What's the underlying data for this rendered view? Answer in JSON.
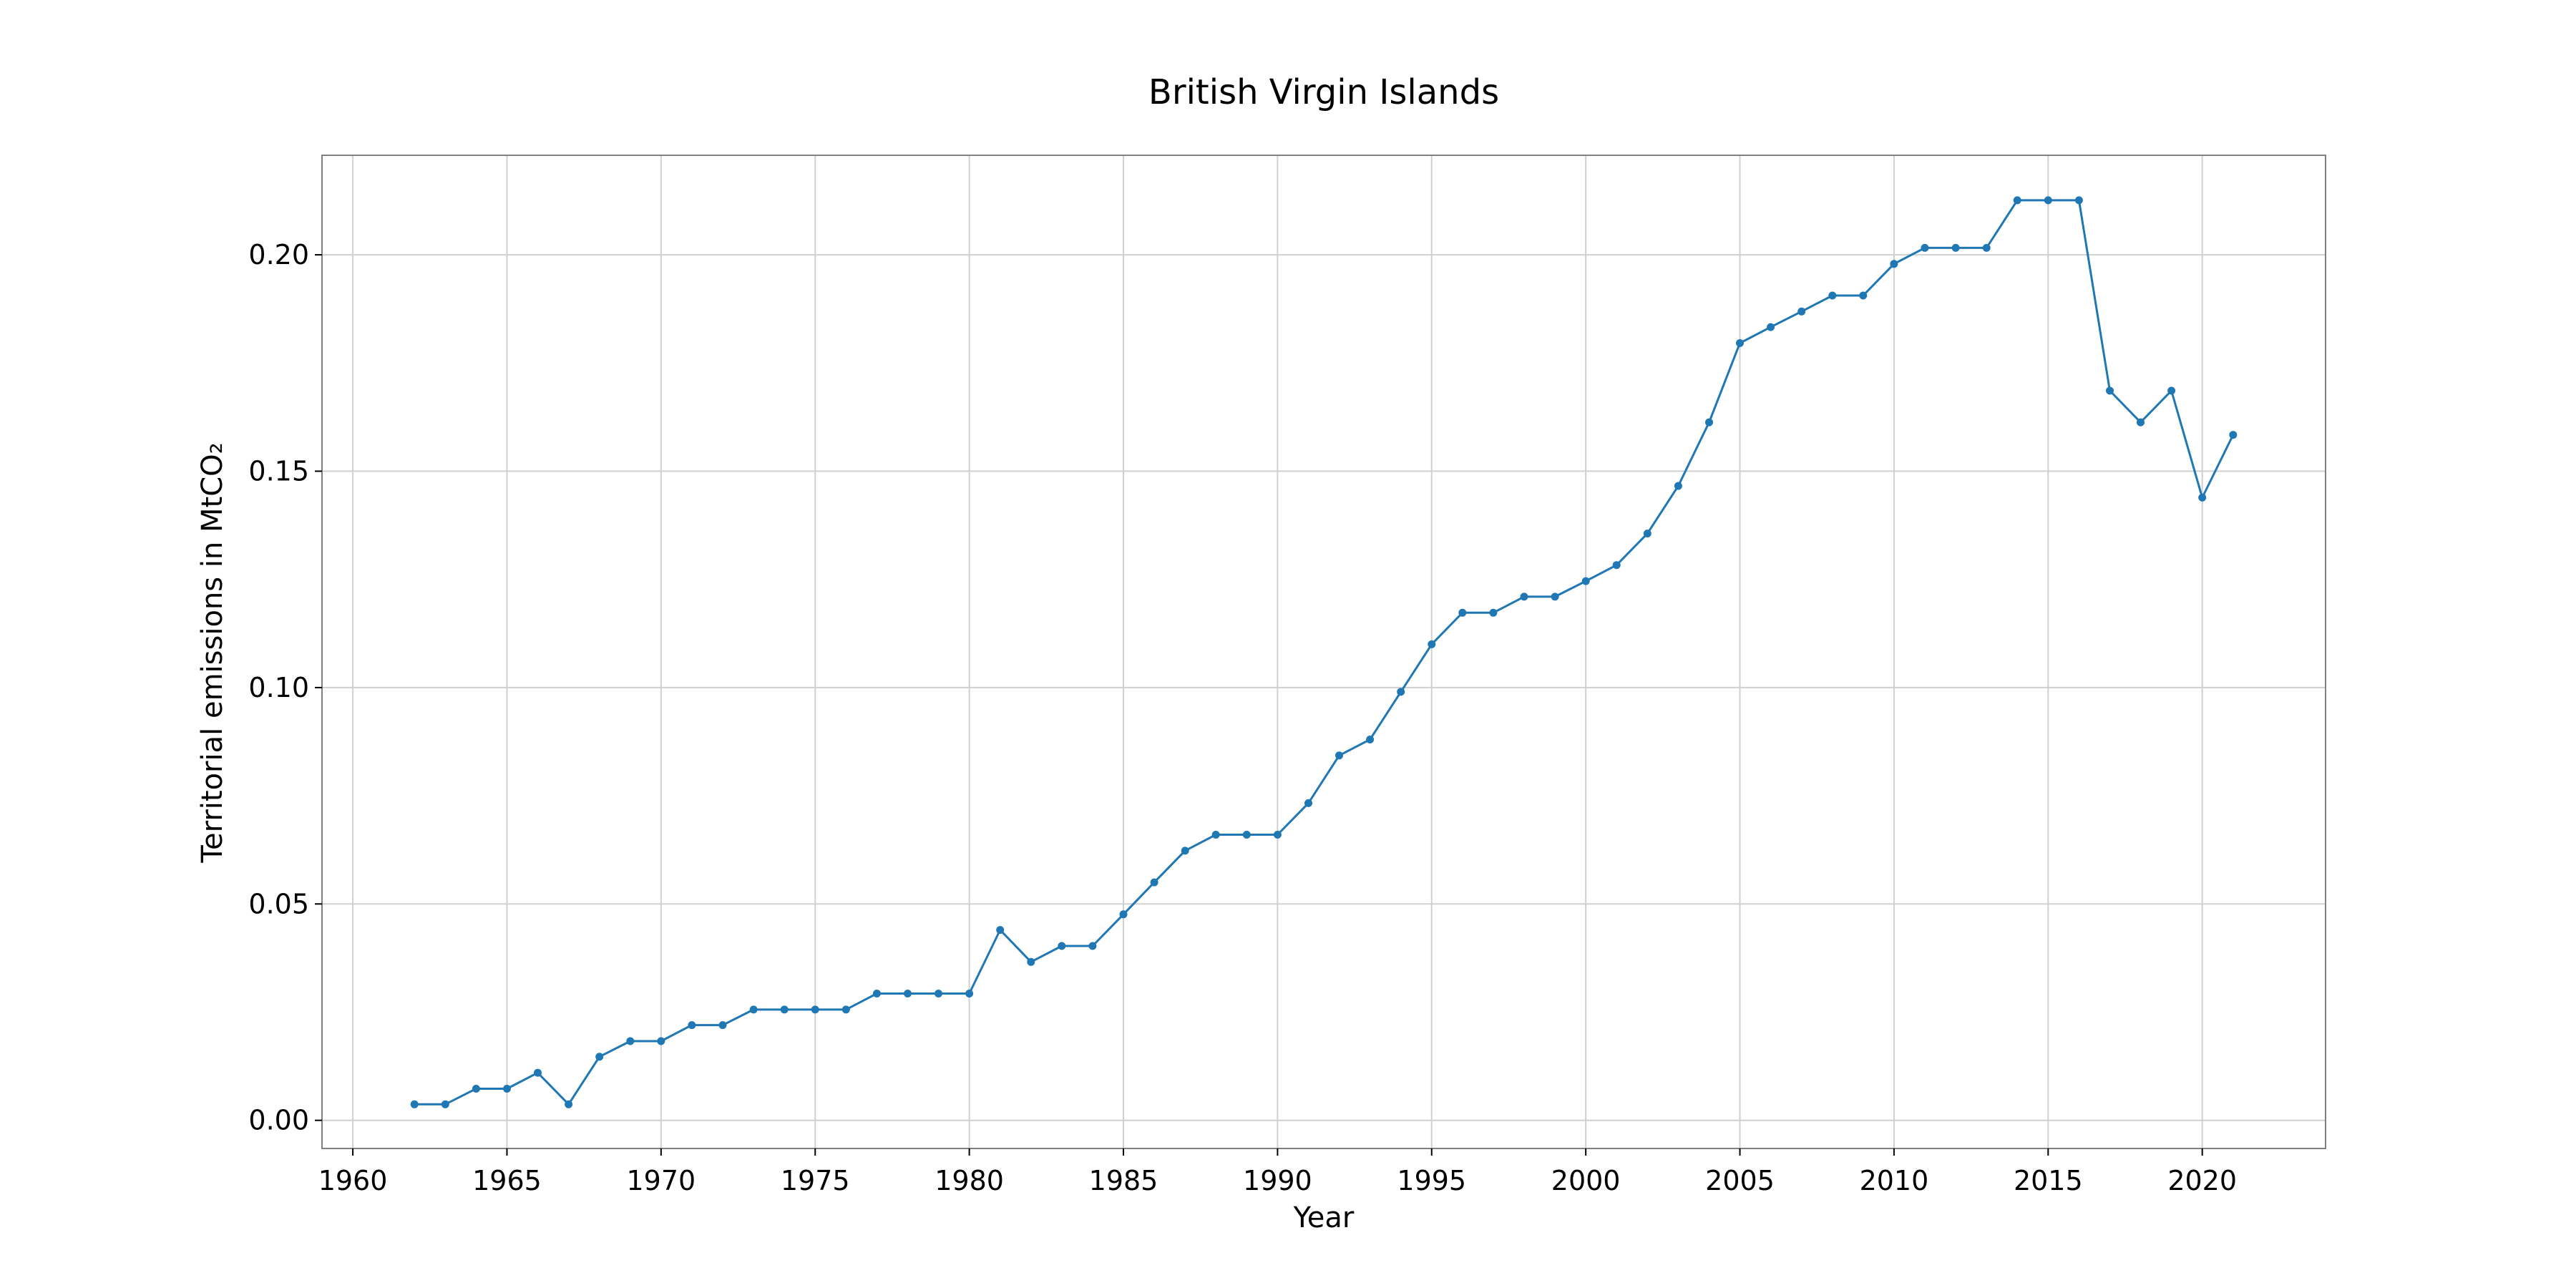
{
  "chart_data": {
    "type": "line",
    "title": "British Virgin Islands",
    "xlabel": "Year",
    "ylabel": "Territorial emissions in MtCO₂",
    "xlim": [
      1959,
      2024
    ],
    "ylim": [
      -0.0065,
      0.223
    ],
    "x_ticks": [
      1960,
      1965,
      1970,
      1975,
      1980,
      1985,
      1990,
      1995,
      2000,
      2005,
      2010,
      2015,
      2020
    ],
    "y_ticks": [
      0.0,
      0.05,
      0.1,
      0.15,
      0.2
    ],
    "x_tick_labels": [
      "1960",
      "1965",
      "1970",
      "1975",
      "1980",
      "1985",
      "1990",
      "1995",
      "2000",
      "2005",
      "2010",
      "2015",
      "2020"
    ],
    "y_tick_labels": [
      "0.00",
      "0.05",
      "0.10",
      "0.15",
      "0.20"
    ],
    "grid": true,
    "legend": "none",
    "colors": {
      "line": "#1f77b4",
      "grid": "#d0d0d0",
      "frame": "#808080"
    },
    "series": [
      {
        "x": [
          1962,
          1963,
          1964,
          1965,
          1966,
          1967,
          1968,
          1969,
          1970,
          1971,
          1972,
          1973,
          1974,
          1975,
          1976,
          1977,
          1978,
          1979,
          1980,
          1981,
          1982,
          1983,
          1984,
          1985,
          1986,
          1987,
          1988,
          1989,
          1990,
          1991,
          1992,
          1993,
          1994,
          1995,
          1996,
          1997,
          1998,
          1999,
          2000,
          2001,
          2002,
          2003,
          2004,
          2005,
          2006,
          2007,
          2008,
          2009,
          2010,
          2011,
          2012,
          2013,
          2014,
          2015,
          2016,
          2017,
          2018,
          2019,
          2020,
          2021
        ],
        "y": [
          0.0037,
          0.0037,
          0.0073,
          0.0073,
          0.011,
          0.0037,
          0.0147,
          0.0183,
          0.0183,
          0.022,
          0.022,
          0.0256,
          0.0256,
          0.0256,
          0.0256,
          0.0293,
          0.0293,
          0.0293,
          0.0293,
          0.044,
          0.0366,
          0.0403,
          0.0403,
          0.0476,
          0.055,
          0.0623,
          0.066,
          0.066,
          0.066,
          0.0733,
          0.0843,
          0.088,
          0.099,
          0.11,
          0.1173,
          0.1173,
          0.121,
          0.121,
          0.1246,
          0.1283,
          0.1356,
          0.1466,
          0.1613,
          0.1796,
          0.1833,
          0.1869,
          0.1906,
          0.1906,
          0.1979,
          0.2016,
          0.2016,
          0.2016,
          0.2126,
          0.2126,
          0.2126,
          0.1686,
          0.1613,
          0.1686,
          0.1439,
          0.1584
        ]
      }
    ]
  }
}
